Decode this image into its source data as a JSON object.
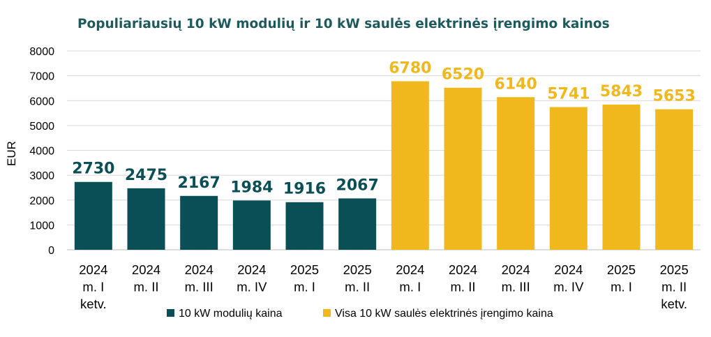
{
  "chart_data": {
    "type": "bar",
    "title": "Populiariausių 10 kW modulių ir 10 kW saulės elektrinės įrengimo kainos",
    "ylabel": "EUR",
    "xlabel": "",
    "ylim": [
      0,
      8000
    ],
    "yticks": [
      0,
      1000,
      2000,
      3000,
      4000,
      5000,
      6000,
      7000,
      8000
    ],
    "grid": true,
    "legend_position": "bottom",
    "categories": [
      [
        "2024",
        "m. I",
        "ketv."
      ],
      [
        "2024",
        "m. II"
      ],
      [
        "2024",
        "m. III"
      ],
      [
        "2024",
        "m. IV"
      ],
      [
        "2025",
        "m. I"
      ],
      [
        "2025",
        "m. II"
      ],
      [
        "2024",
        "m. I"
      ],
      [
        "2024",
        "m. II"
      ],
      [
        "2024",
        "m. III"
      ],
      [
        "2024",
        "m. IV"
      ],
      [
        "2025",
        "m. I"
      ],
      [
        "2025",
        "m. II",
        "ketv."
      ]
    ],
    "series": [
      {
        "name": "10 kW modulių kaina",
        "color": "#0b4f56",
        "values": [
          2730,
          2475,
          2167,
          1984,
          1916,
          2067,
          null,
          null,
          null,
          null,
          null,
          null
        ]
      },
      {
        "name": "Visa 10 kW saulės elektrinės įrengimo kaina",
        "color": "#f0b81d",
        "values": [
          null,
          null,
          null,
          null,
          null,
          null,
          6780,
          6520,
          6140,
          5741,
          5843,
          5653
        ]
      }
    ]
  }
}
